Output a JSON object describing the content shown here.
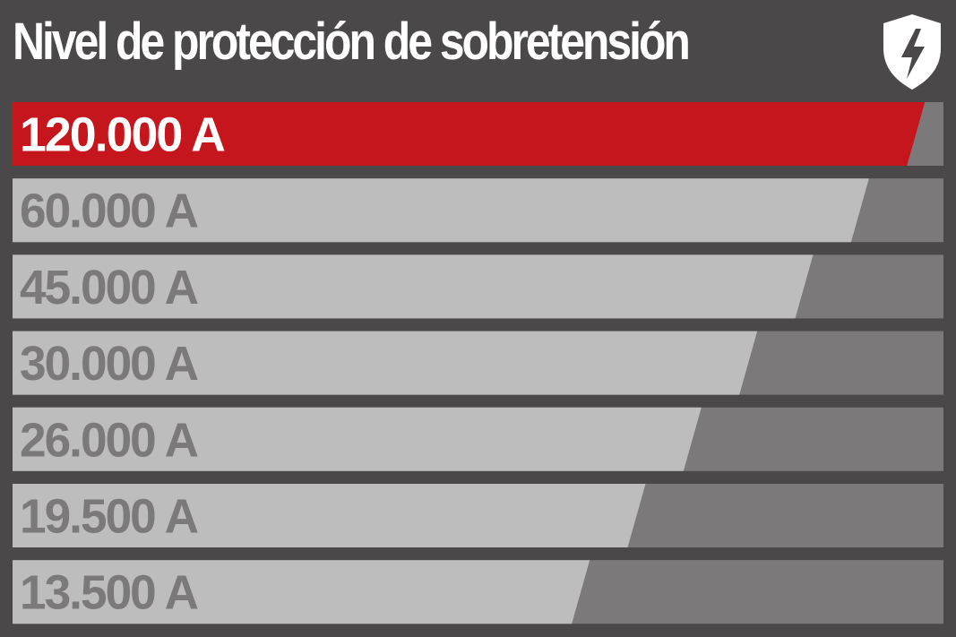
{
  "title": "Nivel de protección de sobretensión",
  "logo_icon": "shield-lightning-icon",
  "colors": {
    "background": "#4b4849",
    "highlight_fill": "#c4161c",
    "highlight_text": "#ffffff",
    "bar_fill": "#bdbdbd",
    "bar_track": "#7b797a",
    "bar_text": "#7b797a"
  },
  "chart_data": {
    "type": "bar",
    "orientation": "horizontal",
    "title": "Nivel de protección de sobretensión",
    "unit": "A",
    "categories": [
      "120.000 A",
      "60.000 A",
      "45.000 A",
      "30.000 A",
      "26.000 A",
      "19.500 A",
      "13.500 A"
    ],
    "values": [
      120000,
      60000,
      45000,
      30000,
      26000,
      19500,
      13500
    ],
    "highlighted_index": 0,
    "fill_fraction": [
      0.98,
      0.92,
      0.86,
      0.8,
      0.74,
      0.68,
      0.62
    ],
    "grid": false,
    "legend": "none"
  }
}
